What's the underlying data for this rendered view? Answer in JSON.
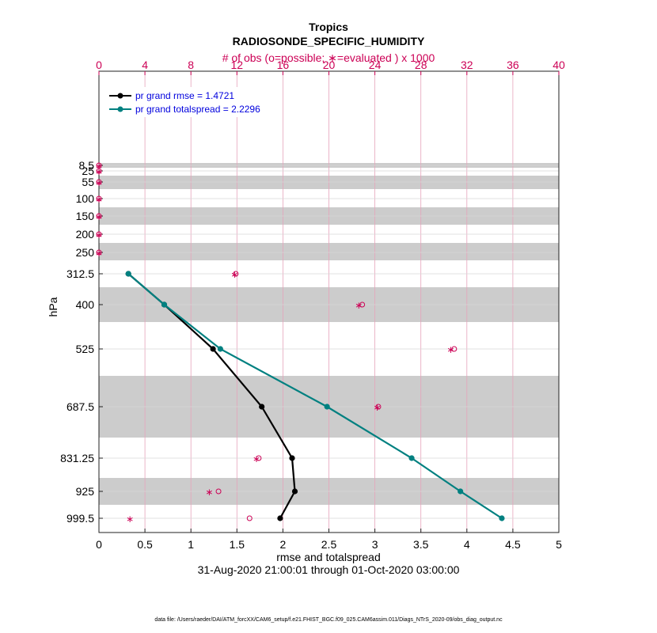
{
  "title": "Tropics",
  "subtitle": "RADIOSONDE_SPECIFIC_HUMIDITY",
  "top_axis_label": "# of obs (o=possible; ∗=evaluated ) x 1000",
  "xlabel": "rmse and totalspread",
  "ylabel": "hPa",
  "date_range": "31-Aug-2020 21:00:01 through 01-Oct-2020 03:00:00",
  "footer": "data file: /Users/raeder/DAI/ATM_forcXX/CAM6_setup/f.e21.FHIST_BGC.f09_025.CAM6assim.011/Diags_NTrS_2020-09/obs_diag_output.nc",
  "colors": {
    "rmse": "#000000",
    "spread": "#008080",
    "obs": "#cc0055",
    "band": "#cccccc"
  },
  "chart_data": {
    "type": "line",
    "xlim": [
      0,
      5
    ],
    "top_xlim": [
      0,
      40
    ],
    "x_ticks": [
      "0",
      "0.5",
      "1",
      "1.5",
      "2",
      "2.5",
      "3",
      "3.5",
      "4",
      "4.5",
      "5"
    ],
    "top_ticks": [
      "0",
      "4",
      "8",
      "12",
      "16",
      "20",
      "24",
      "28",
      "32",
      "36",
      "40"
    ],
    "levels": [
      "8.5",
      "25",
      "55",
      "100",
      "150",
      "200",
      "250",
      "312.5",
      "400",
      "525",
      "687.5",
      "831.25",
      "925",
      "999.5"
    ],
    "grid": true,
    "legend_position": "top-left",
    "series": [
      {
        "name": "pr grand rmse = 1.4721",
        "levels": [
          "312.5",
          "400",
          "525",
          "687.5",
          "831.25",
          "925",
          "999.5"
        ],
        "values": [
          0.32,
          0.71,
          1.24,
          1.77,
          2.1,
          2.13,
          1.97
        ]
      },
      {
        "name": "pr grand totalspread = 2.2296",
        "levels": [
          "312.5",
          "400",
          "525",
          "687.5",
          "831.25",
          "925",
          "999.5"
        ],
        "values": [
          0.32,
          0.71,
          1.32,
          2.48,
          3.4,
          3.93,
          4.38
        ]
      }
    ],
    "obs_possible": {
      "levels": [
        "8.5",
        "25",
        "55",
        "100",
        "150",
        "200",
        "250",
        "312.5",
        "400",
        "525",
        "687.5",
        "831.25",
        "925",
        "999.5"
      ],
      "values": [
        0,
        0,
        0,
        0,
        0,
        0,
        0,
        11.9,
        22.9,
        30.9,
        24.3,
        13.9,
        10.4,
        13.1
      ]
    },
    "obs_evaluated": {
      "levels": [
        "8.5",
        "25",
        "55",
        "100",
        "150",
        "200",
        "250",
        "312.5",
        "400",
        "525",
        "687.5",
        "831.25",
        "925",
        "999.5"
      ],
      "values": [
        0,
        0,
        0,
        0,
        0,
        0,
        0,
        11.8,
        22.6,
        30.6,
        24.2,
        13.7,
        9.6,
        2.7
      ]
    }
  }
}
